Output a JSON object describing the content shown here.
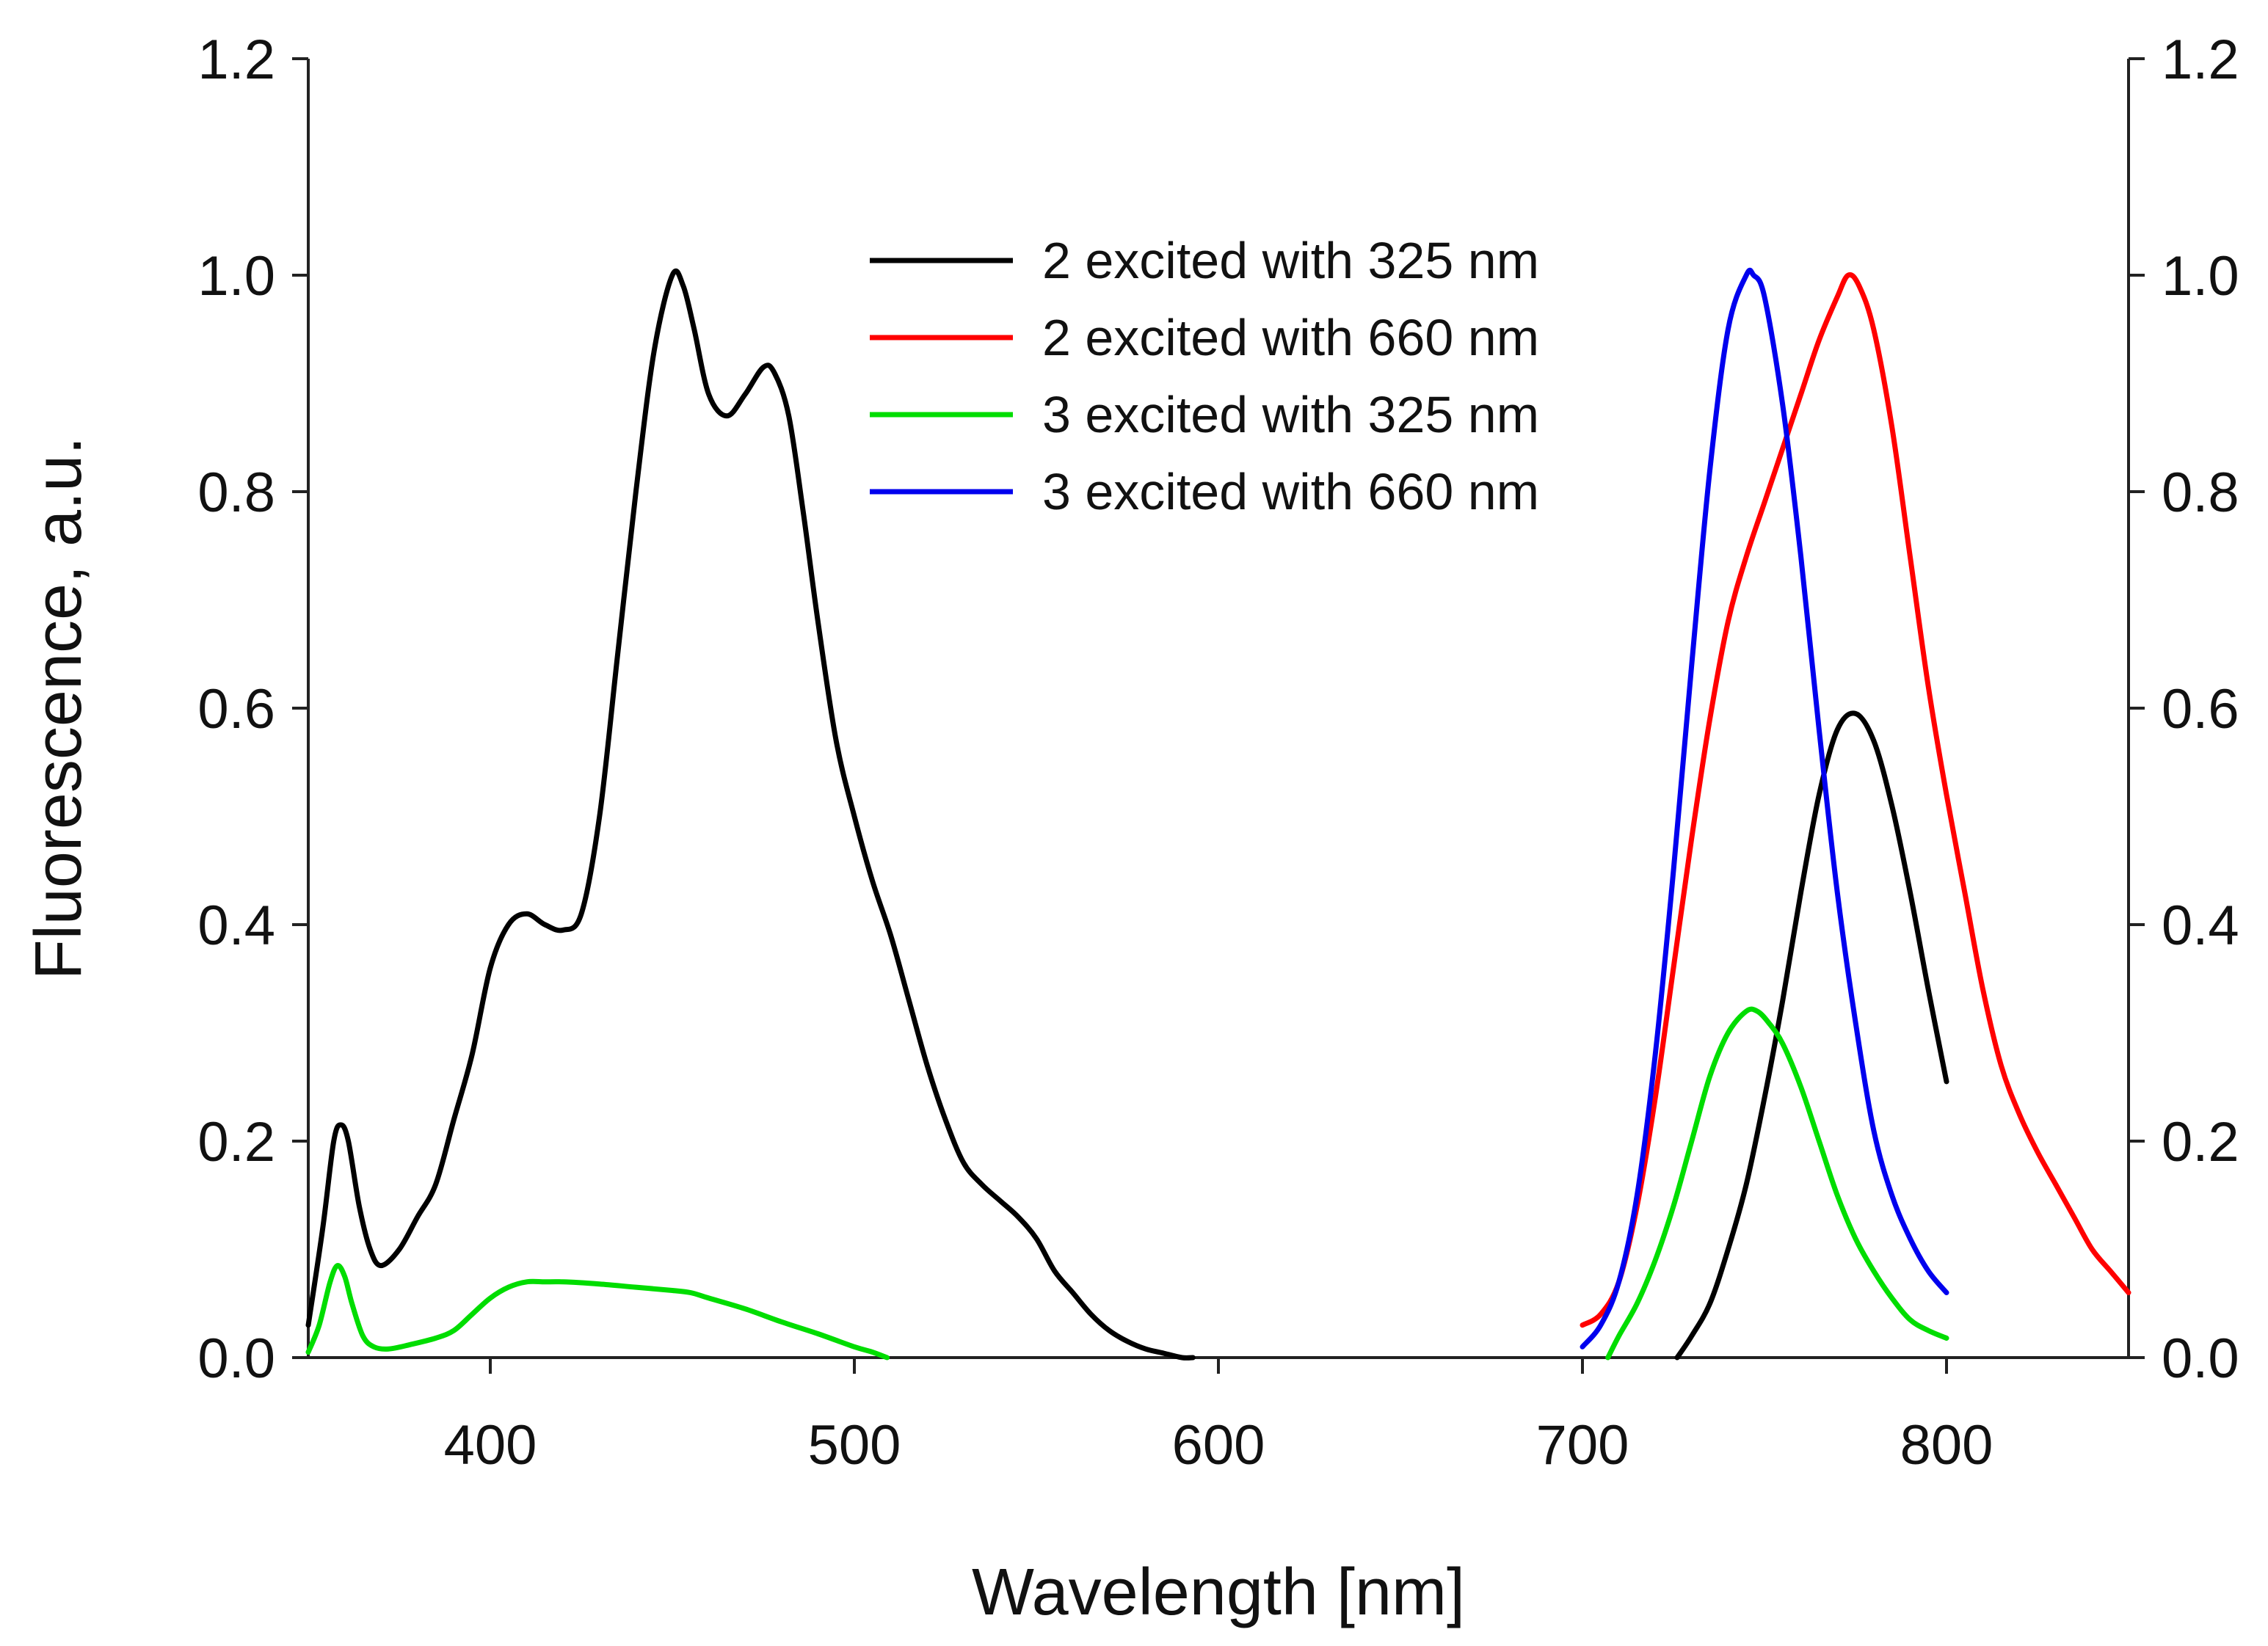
{
  "chart_data": {
    "type": "line",
    "title": "",
    "xlabel": "Wavelength [nm]",
    "ylabel": "Fluorescence, a.u.",
    "xlim": [
      350,
      850
    ],
    "ylim": [
      0,
      1.2
    ],
    "x_ticks": [
      400,
      500,
      600,
      700,
      800
    ],
    "x_tick_labels": [
      "400",
      "500",
      "600",
      "700",
      "800"
    ],
    "y_ticks": [
      0,
      0.2,
      0.4,
      0.6,
      0.8,
      1.0,
      1.2
    ],
    "y_tick_labels": [
      "0.0",
      "0.2",
      "0.4",
      "0.6",
      "0.8",
      "1.0",
      "1.2"
    ],
    "y2_tick_labels": [
      "0.0",
      "0.2",
      "0.4",
      "0.6",
      "0.8",
      "1.0",
      "1.2"
    ],
    "grid": false,
    "legend_position": "top-center",
    "series": [
      {
        "name": "2 excited with 325 nm",
        "color": "#000000",
        "segments": [
          {
            "x": [
              350,
              354,
              357,
              359,
              361,
              364,
              367,
              370,
              375,
              380,
              385,
              390,
              395,
              400,
              405,
              410,
              415,
              420,
              425,
              430,
              435,
              440,
              445,
              450,
              453,
              456,
              460,
              465,
              470,
              475,
              478,
              482,
              486,
              490,
              495,
              500,
              505,
              510,
              515,
              520,
              525,
              530,
              535,
              540,
              545,
              550,
              555,
              560,
              565,
              570,
              575,
              580,
              585,
              590,
              593
            ],
            "y": [
              0.03,
              0.12,
              0.2,
              0.215,
              0.2,
              0.14,
              0.1,
              0.085,
              0.1,
              0.13,
              0.16,
              0.22,
              0.28,
              0.36,
              0.4,
              0.41,
              0.4,
              0.395,
              0.41,
              0.5,
              0.65,
              0.8,
              0.93,
              1.0,
              0.99,
              0.95,
              0.89,
              0.87,
              0.89,
              0.915,
              0.91,
              0.87,
              0.78,
              0.68,
              0.57,
              0.5,
              0.44,
              0.39,
              0.33,
              0.27,
              0.22,
              0.18,
              0.16,
              0.145,
              0.13,
              0.11,
              0.08,
              0.06,
              0.04,
              0.025,
              0.015,
              0.008,
              0.004,
              0.0,
              0.0
            ]
          },
          {
            "x": [
              726,
              730,
              735,
              740,
              745,
              750,
              755,
              760,
              765,
              770,
              775,
              780,
              785,
              790,
              795,
              800
            ],
            "y": [
              0.0,
              0.02,
              0.05,
              0.1,
              0.16,
              0.24,
              0.33,
              0.43,
              0.52,
              0.58,
              0.595,
              0.57,
              0.51,
              0.43,
              0.34,
              0.255
            ]
          }
        ]
      },
      {
        "name": "2 excited with 660 nm",
        "color": "#ff0000",
        "segments": [
          {
            "x": [
              700,
              705,
              710,
              715,
              720,
              725,
              730,
              735,
              740,
              745,
              750,
              755,
              760,
              765,
              770,
              773,
              776,
              780,
              785,
              790,
              795,
              800,
              805,
              810,
              815,
              820,
              825,
              830,
              835,
              840,
              845,
              850
            ],
            "y": [
              0.03,
              0.04,
              0.07,
              0.14,
              0.24,
              0.36,
              0.48,
              0.59,
              0.68,
              0.74,
              0.79,
              0.84,
              0.89,
              0.94,
              0.98,
              1.0,
              0.99,
              0.95,
              0.86,
              0.74,
              0.62,
              0.52,
              0.43,
              0.34,
              0.27,
              0.225,
              0.19,
              0.16,
              0.13,
              0.1,
              0.08,
              0.06
            ]
          }
        ]
      },
      {
        "name": "3 excited with 325 nm",
        "color": "#00dd00",
        "segments": [
          {
            "x": [
              350,
              353,
              356,
              358,
              360,
              362,
              365,
              368,
              372,
              378,
              385,
              390,
              395,
              400,
              405,
              410,
              415,
              420,
              430,
              440,
              450,
              455,
              460,
              470,
              480,
              490,
              500,
              505,
              509
            ],
            "y": [
              0.005,
              0.03,
              0.07,
              0.085,
              0.075,
              0.05,
              0.02,
              0.01,
              0.008,
              0.012,
              0.018,
              0.025,
              0.04,
              0.055,
              0.065,
              0.07,
              0.07,
              0.07,
              0.068,
              0.065,
              0.062,
              0.06,
              0.055,
              0.045,
              0.033,
              0.022,
              0.01,
              0.005,
              0.0
            ]
          },
          {
            "x": [
              707,
              710,
              715,
              720,
              725,
              730,
              735,
              740,
              745,
              748,
              751,
              755,
              760,
              765,
              770,
              775,
              780,
              785,
              790,
              795,
              800
            ],
            "y": [
              0.0,
              0.02,
              0.05,
              0.09,
              0.14,
              0.2,
              0.26,
              0.3,
              0.32,
              0.32,
              0.31,
              0.29,
              0.25,
              0.2,
              0.15,
              0.11,
              0.08,
              0.055,
              0.035,
              0.025,
              0.018
            ]
          }
        ]
      },
      {
        "name": "3 excited with 660 nm",
        "color": "#0000ee",
        "segments": [
          {
            "x": [
              700,
              705,
              710,
              715,
              720,
              725,
              730,
              735,
              740,
              745,
              747,
              750,
              755,
              760,
              765,
              770,
              775,
              780,
              785,
              790,
              795,
              800
            ],
            "y": [
              0.01,
              0.03,
              0.07,
              0.15,
              0.28,
              0.45,
              0.64,
              0.82,
              0.95,
              1.0,
              1.0,
              0.98,
              0.88,
              0.74,
              0.58,
              0.43,
              0.31,
              0.21,
              0.15,
              0.11,
              0.08,
              0.06
            ]
          }
        ]
      }
    ]
  }
}
